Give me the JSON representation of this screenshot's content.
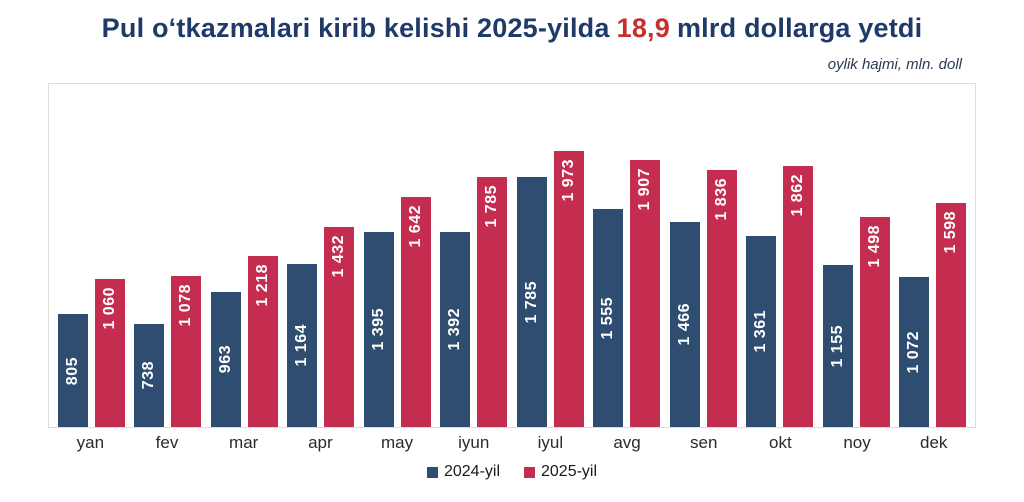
{
  "title": {
    "prefix": "Pul oʻtkazmalari kirib kelishi 2025-yilda",
    "highlight": "18,9",
    "suffix": "mlrd dollarga yetdi"
  },
  "subtitle": "oylik hajmi, mln. doll",
  "colors": {
    "title_navy": "#1f3a68",
    "title_red": "#c52f2f",
    "series_2024": "#2f4d71",
    "series_2025": "#c42c50",
    "plot_border": "#dcdcdc",
    "value_label": "#ffffff"
  },
  "chart_data": {
    "type": "bar",
    "title": "Pul oʻtkazmalari kirib kelishi 2025-yilda 18,9 mlrd dollarga yetdi",
    "subtitle": "oylik hajmi, mln. doll",
    "categories": [
      "yan",
      "fev",
      "mar",
      "apr",
      "may",
      "iyun",
      "iyul",
      "avg",
      "sen",
      "okt",
      "noy",
      "dek"
    ],
    "series": [
      {
        "name": "2024-yil",
        "color": "#2f4d71",
        "values": [
          805,
          738,
          963,
          1164,
          1395,
          1392,
          1785,
          1555,
          1466,
          1361,
          1155,
          1072
        ]
      },
      {
        "name": "2025-yil",
        "color": "#c42c50",
        "values": [
          1060,
          1078,
          1218,
          1432,
          1642,
          1785,
          1973,
          1907,
          1836,
          1862,
          1498,
          1598
        ]
      }
    ],
    "xlabel": "",
    "ylabel": "",
    "ylim": [
      0,
      2450
    ],
    "grid": false,
    "legend_position": "bottom",
    "value_labels": "inside-vertical"
  }
}
